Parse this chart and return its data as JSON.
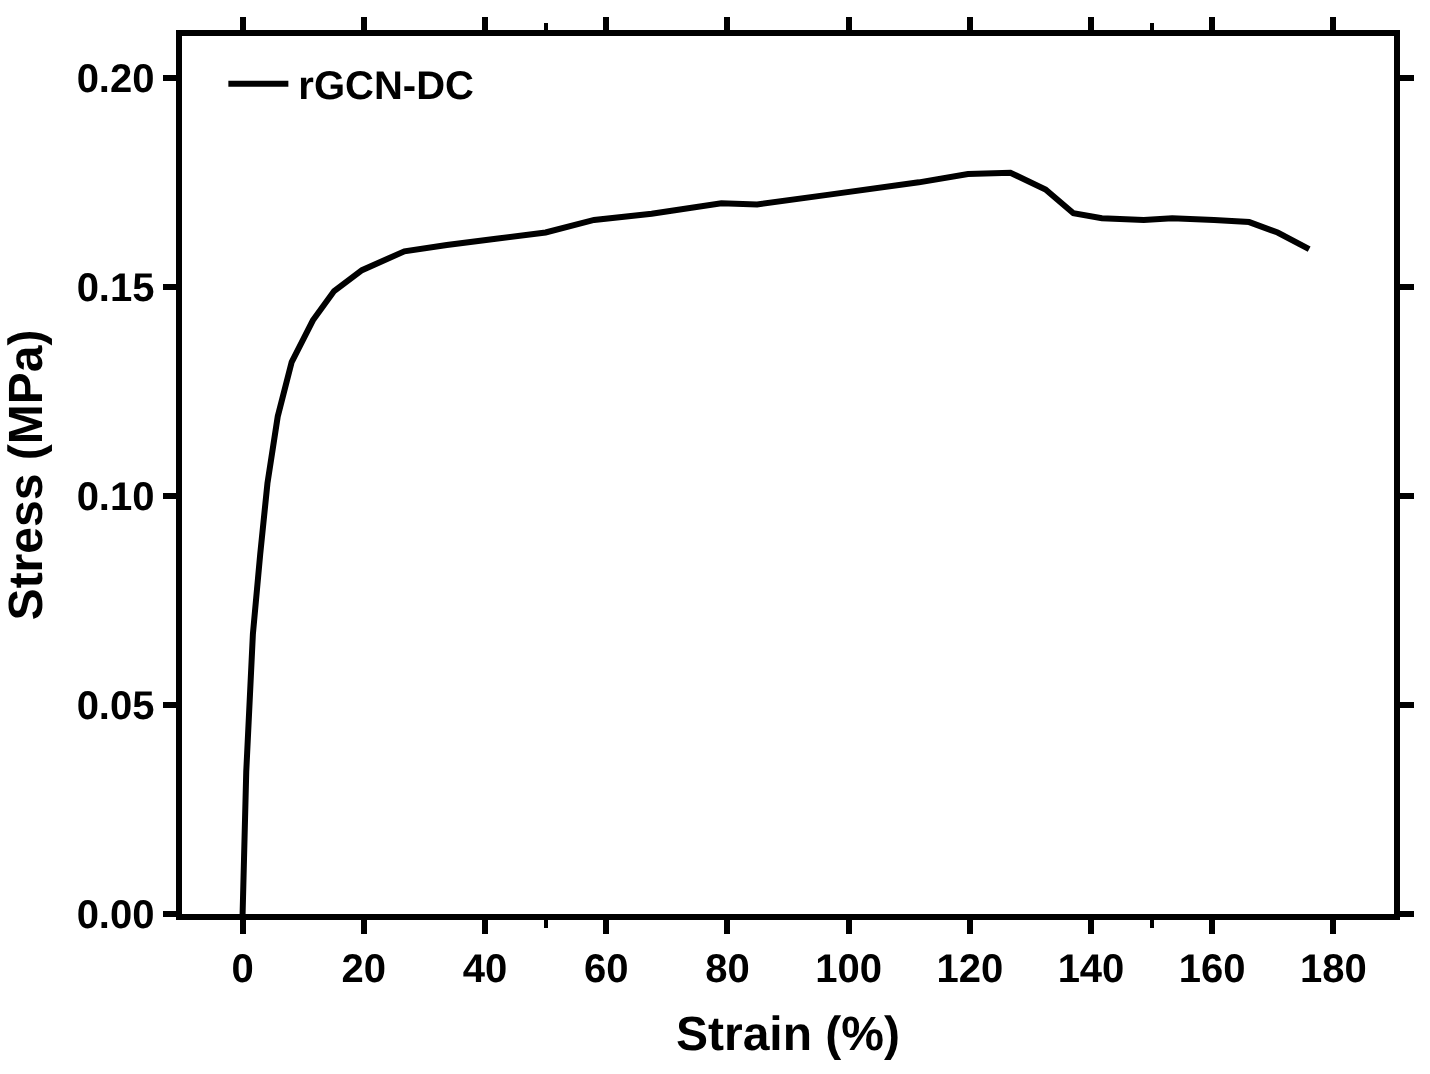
{
  "chart_data": {
    "type": "line",
    "xlabel": "Strain (%)",
    "ylabel": "Stress (MPa)",
    "xlim": [
      -10,
      190
    ],
    "xticks": [
      0,
      20,
      40,
      60,
      80,
      100,
      120,
      140,
      160,
      180
    ],
    "ylim": [
      0,
      0.21
    ],
    "yticks": [
      {
        "value": 0,
        "label": "0.00"
      },
      {
        "value": 0.05,
        "label": "0.05"
      },
      {
        "value": 0.1,
        "label": "0.10"
      },
      {
        "value": 0.15,
        "label": "0.15"
      },
      {
        "value": 0.2,
        "label": "0.20"
      }
    ],
    "grid": false,
    "legend": "top left",
    "marker": "none",
    "line_style": "solid",
    "series": [
      {
        "name": "rGCN-DC",
        "color": "#000000",
        "x": [
          0,
          0.6,
          1.7,
          2.9,
          4.1,
          5.8,
          8.1,
          11.6,
          15.1,
          19.7,
          26.7,
          33.7,
          41.8,
          50,
          58,
          67.5,
          79,
          84.9,
          96.5,
          111.6,
          119.7,
          126.7,
          132.5,
          137.1,
          141.8,
          148.7,
          153.4,
          160.3,
          166.1,
          170.8,
          176
        ],
        "values": [
          0,
          0.034,
          0.067,
          0.086,
          0.103,
          0.119,
          0.132,
          0.142,
          0.149,
          0.154,
          0.1585,
          0.16,
          0.1615,
          0.163,
          0.166,
          0.1675,
          0.17,
          0.1697,
          0.172,
          0.175,
          0.177,
          0.1773,
          0.1733,
          0.1676,
          0.1664,
          0.166,
          0.1664,
          0.166,
          0.1655,
          0.163,
          0.159
        ]
      }
    ]
  }
}
